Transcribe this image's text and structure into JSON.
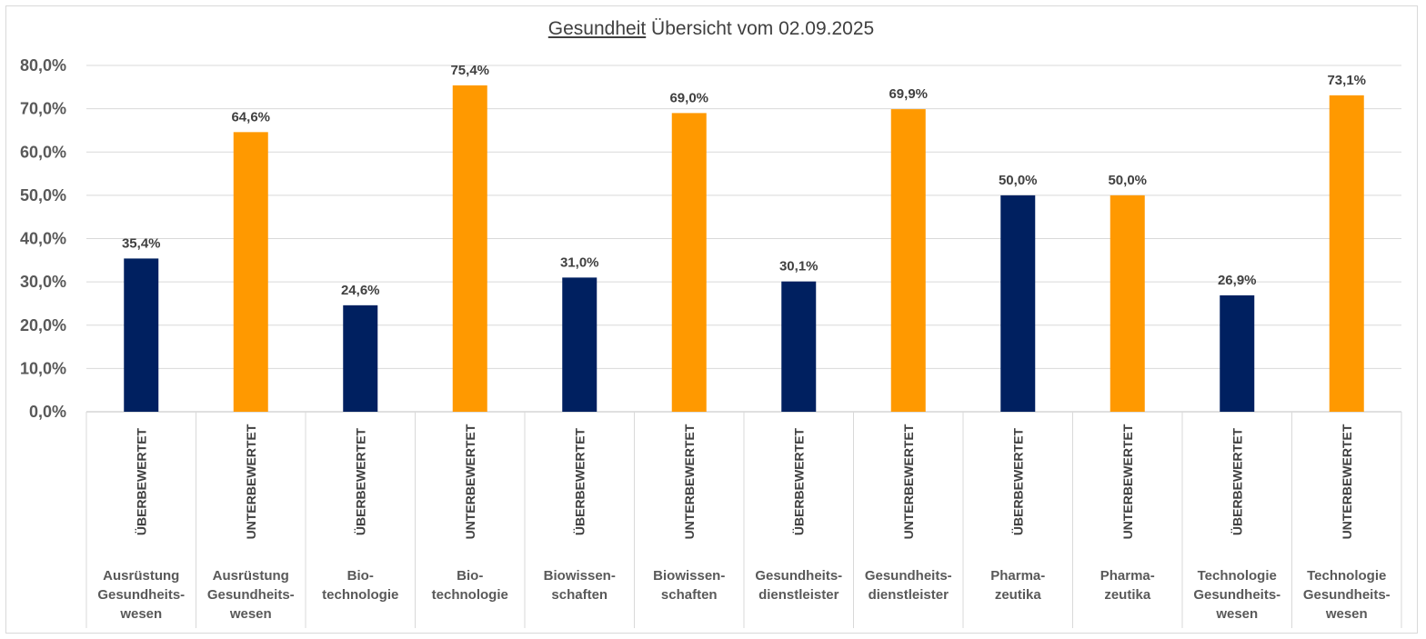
{
  "chart_data": {
    "type": "bar",
    "title_underlined": "Gesundheit",
    "title_rest": " Übersicht vom 02.09.2025",
    "ylim": [
      0,
      80
    ],
    "yticks": [
      "0,0%",
      "10,0%",
      "20,0%",
      "30,0%",
      "40,0%",
      "50,0%",
      "60,0%",
      "70,0%",
      "80,0%"
    ],
    "grid": true,
    "colors": {
      "ueberbewertet": "#002060",
      "unterbewertet": "#ff9900"
    },
    "categories": [
      {
        "status": "ÜBERBEWERTET",
        "sector": [
          "Ausrüstung",
          "Gesundheits-",
          "wesen"
        ],
        "value": 35.4,
        "label": "35,4%",
        "color_key": "ueberbewertet"
      },
      {
        "status": "UNTERBEWERTET",
        "sector": [
          "Ausrüstung",
          "Gesundheits-",
          "wesen"
        ],
        "value": 64.6,
        "label": "64,6%",
        "color_key": "unterbewertet"
      },
      {
        "status": "ÜBERBEWERTET",
        "sector": [
          "Bio-",
          "technologie"
        ],
        "value": 24.6,
        "label": "24,6%",
        "color_key": "ueberbewertet"
      },
      {
        "status": "UNTERBEWERTET",
        "sector": [
          "Bio-",
          "technologie"
        ],
        "value": 75.4,
        "label": "75,4%",
        "color_key": "unterbewertet"
      },
      {
        "status": "ÜBERBEWERTET",
        "sector": [
          "Biowissen-",
          "schaften"
        ],
        "value": 31.0,
        "label": "31,0%",
        "color_key": "ueberbewertet"
      },
      {
        "status": "UNTERBEWERTET",
        "sector": [
          "Biowissen-",
          "schaften"
        ],
        "value": 69.0,
        "label": "69,0%",
        "color_key": "unterbewertet"
      },
      {
        "status": "ÜBERBEWERTET",
        "sector": [
          "Gesundheits-",
          "dienstleister"
        ],
        "value": 30.1,
        "label": "30,1%",
        "color_key": "ueberbewertet"
      },
      {
        "status": "UNTERBEWERTET",
        "sector": [
          "Gesundheits-",
          "dienstleister"
        ],
        "value": 69.9,
        "label": "69,9%",
        "color_key": "unterbewertet"
      },
      {
        "status": "ÜBERBEWERTET",
        "sector": [
          "Pharma-",
          "zeutika"
        ],
        "value": 50.0,
        "label": "50,0%",
        "color_key": "ueberbewertet"
      },
      {
        "status": "UNTERBEWERTET",
        "sector": [
          "Pharma-",
          "zeutika"
        ],
        "value": 50.0,
        "label": "50,0%",
        "color_key": "unterbewertet"
      },
      {
        "status": "ÜBERBEWERTET",
        "sector": [
          "Technologie",
          "Gesundheits-",
          "wesen"
        ],
        "value": 26.9,
        "label": "26,9%",
        "color_key": "ueberbewertet"
      },
      {
        "status": "UNTERBEWERTET",
        "sector": [
          "Technologie",
          "Gesundheits-",
          "wesen"
        ],
        "value": 73.1,
        "label": "73,1%",
        "color_key": "unterbewertet"
      }
    ]
  }
}
